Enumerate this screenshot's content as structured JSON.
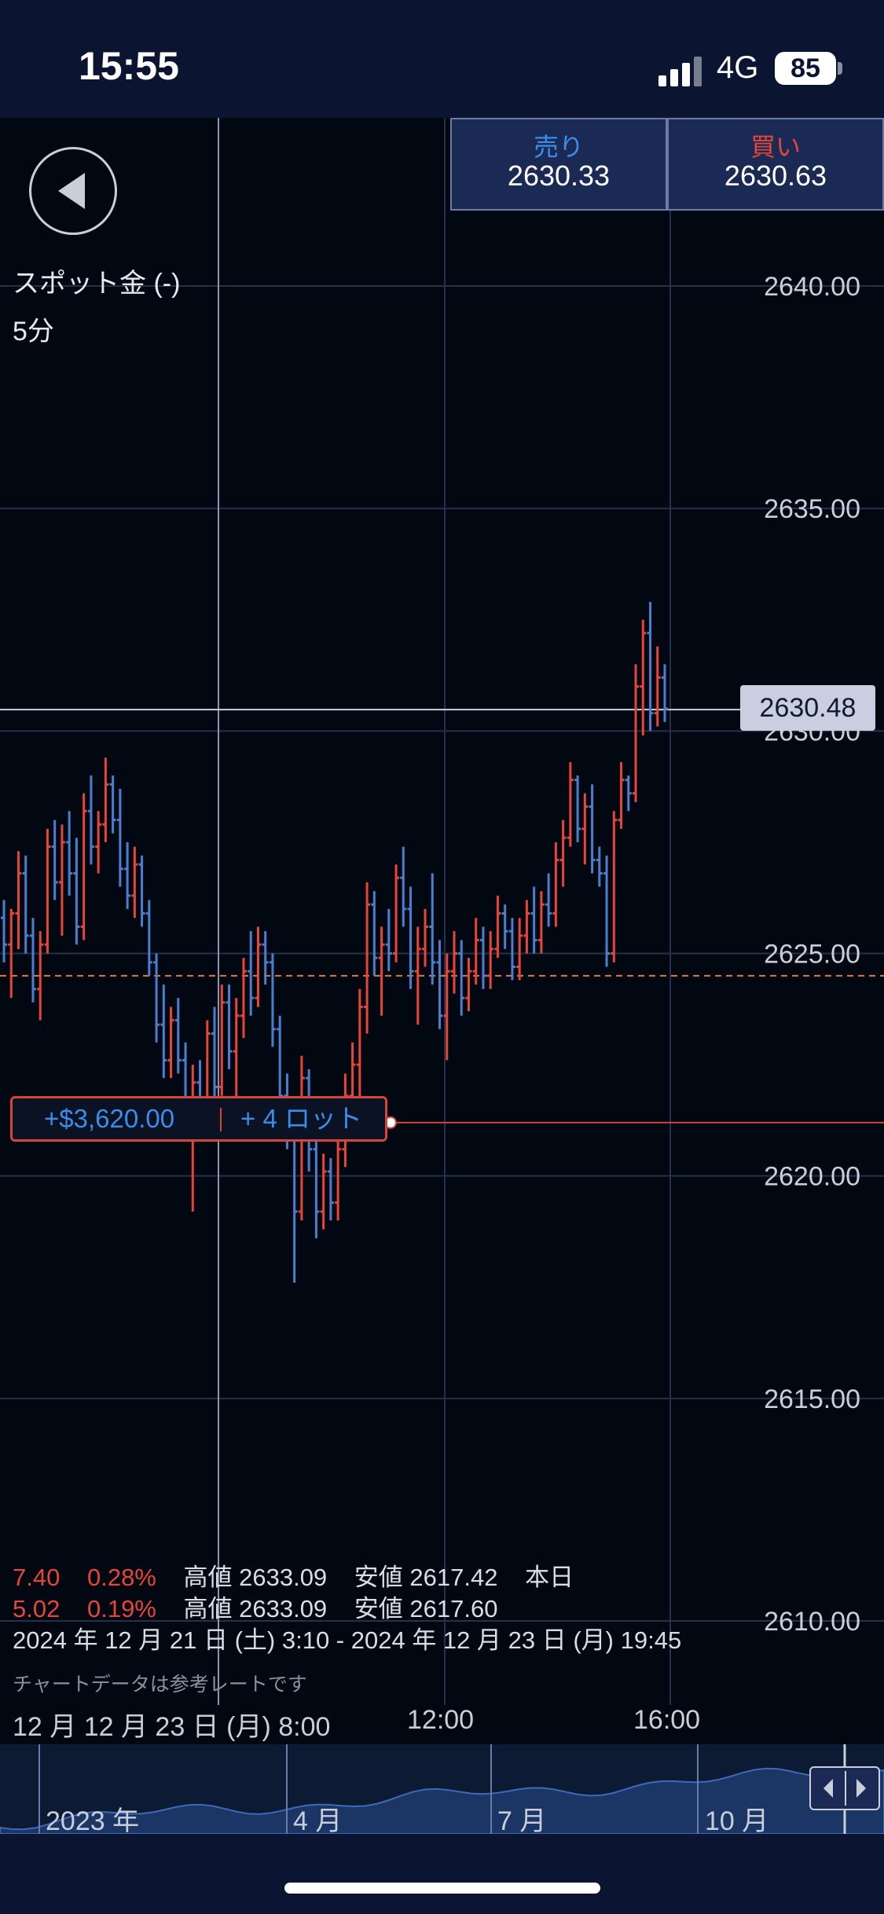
{
  "status_bar": {
    "time": "15:55",
    "network": "4G",
    "battery": "85"
  },
  "instrument": {
    "name": "スポット金 (-)",
    "timeframe": "5分"
  },
  "quotes": {
    "sell": {
      "label": "売り",
      "price": "2630.33"
    },
    "buy": {
      "label": "買い",
      "price": "2630.63"
    }
  },
  "current_price_tag": "2630.48",
  "position": {
    "pnl": "+$3,620.00",
    "lots": "+ 4 ロット",
    "entry_price": 2621.2,
    "breakeven_price": 2624.5
  },
  "stats": {
    "row1": {
      "change": "7.40",
      "pct": "0.28%",
      "high": "高値 2633.09",
      "low": "安値 2617.42",
      "period": "本日"
    },
    "row2": {
      "change": "5.02",
      "pct": "0.19%",
      "high": "高値 2633.09",
      "low": "安値 2617.60"
    },
    "range": "2024 年 12 月 21 日 (土) 3:10 - 2024 年 12 月 23 日 (月) 19:45",
    "note": "チャートデータは参考レートです"
  },
  "time_axis": {
    "cursor_label": "12 月 12 月 23 日 (月) 8:00",
    "t1": "12:00",
    "t2": "16:00"
  },
  "overview": {
    "labels": [
      "2023 年",
      "4 月",
      "7 月",
      "10 月"
    ]
  },
  "colors": {
    "up": "#e8453a",
    "down": "#4a7fd0",
    "background": "#020812",
    "quote_bg": "#1b2a55"
  },
  "icons": {
    "back": "back-arrow-icon",
    "scroll_left": "chevron-left-icon",
    "scroll_right": "chevron-right-icon"
  },
  "chart_data": {
    "type": "ohlc",
    "y_ticks": [
      "2640.00",
      "2635.00",
      "2630.00",
      "2625.00",
      "2620.00",
      "2615.00",
      "2610.00"
    ],
    "ylim": [
      2610,
      2640
    ],
    "grid": true,
    "bars": [
      {
        "o": 2625.8,
        "h": 2626.2,
        "l": 2624.8,
        "c": 2625.2
      },
      {
        "o": 2625.2,
        "h": 2626.0,
        "l": 2624.0,
        "c": 2625.9
      },
      {
        "o": 2625.9,
        "h": 2627.3,
        "l": 2625.1,
        "c": 2626.8
      },
      {
        "o": 2626.8,
        "h": 2627.2,
        "l": 2625.0,
        "c": 2625.4
      },
      {
        "o": 2625.4,
        "h": 2625.8,
        "l": 2623.9,
        "c": 2624.2
      },
      {
        "o": 2624.2,
        "h": 2625.5,
        "l": 2623.5,
        "c": 2625.2
      },
      {
        "o": 2625.2,
        "h": 2627.8,
        "l": 2625.0,
        "c": 2627.4
      },
      {
        "o": 2627.4,
        "h": 2628.0,
        "l": 2626.2,
        "c": 2626.6
      },
      {
        "o": 2626.6,
        "h": 2627.9,
        "l": 2625.4,
        "c": 2627.5
      },
      {
        "o": 2627.5,
        "h": 2628.2,
        "l": 2626.3,
        "c": 2626.8
      },
      {
        "o": 2626.8,
        "h": 2627.6,
        "l": 2625.2,
        "c": 2625.6
      },
      {
        "o": 2625.6,
        "h": 2628.6,
        "l": 2625.3,
        "c": 2628.2
      },
      {
        "o": 2628.2,
        "h": 2629.0,
        "l": 2627.0,
        "c": 2627.4
      },
      {
        "o": 2627.4,
        "h": 2628.2,
        "l": 2626.8,
        "c": 2627.9
      },
      {
        "o": 2627.9,
        "h": 2629.4,
        "l": 2627.5,
        "c": 2628.8
      },
      {
        "o": 2628.8,
        "h": 2629.0,
        "l": 2627.7,
        "c": 2628.0
      },
      {
        "o": 2628.0,
        "h": 2628.7,
        "l": 2626.5,
        "c": 2626.9
      },
      {
        "o": 2626.9,
        "h": 2627.5,
        "l": 2626.0,
        "c": 2626.3
      },
      {
        "o": 2626.3,
        "h": 2627.4,
        "l": 2625.8,
        "c": 2627.0
      },
      {
        "o": 2627.0,
        "h": 2627.2,
        "l": 2625.6,
        "c": 2625.9
      },
      {
        "o": 2625.9,
        "h": 2626.2,
        "l": 2624.5,
        "c": 2624.8
      },
      {
        "o": 2624.8,
        "h": 2625.0,
        "l": 2623.0,
        "c": 2623.4
      },
      {
        "o": 2623.4,
        "h": 2624.3,
        "l": 2622.2,
        "c": 2622.6
      },
      {
        "o": 2622.6,
        "h": 2623.8,
        "l": 2622.2,
        "c": 2623.5
      },
      {
        "o": 2623.5,
        "h": 2624.0,
        "l": 2622.3,
        "c": 2622.6
      },
      {
        "o": 2622.6,
        "h": 2623.0,
        "l": 2620.8,
        "c": 2621.5
      },
      {
        "o": 2621.5,
        "h": 2622.5,
        "l": 2619.2,
        "c": 2622.1
      },
      {
        "o": 2622.1,
        "h": 2622.6,
        "l": 2621.0,
        "c": 2621.4
      },
      {
        "o": 2621.4,
        "h": 2623.5,
        "l": 2621.2,
        "c": 2623.2
      },
      {
        "o": 2623.2,
        "h": 2623.8,
        "l": 2621.6,
        "c": 2622.0
      },
      {
        "o": 2622.0,
        "h": 2624.3,
        "l": 2621.8,
        "c": 2623.9
      },
      {
        "o": 2623.9,
        "h": 2624.3,
        "l": 2622.4,
        "c": 2622.8
      },
      {
        "o": 2622.8,
        "h": 2624.0,
        "l": 2621.7,
        "c": 2623.6
      },
      {
        "o": 2623.6,
        "h": 2624.9,
        "l": 2623.1,
        "c": 2624.6
      },
      {
        "o": 2624.6,
        "h": 2625.5,
        "l": 2623.6,
        "c": 2624.0
      },
      {
        "o": 2624.0,
        "h": 2625.6,
        "l": 2623.8,
        "c": 2625.2
      },
      {
        "o": 2625.2,
        "h": 2625.5,
        "l": 2624.3,
        "c": 2624.8
      },
      {
        "o": 2624.8,
        "h": 2625.0,
        "l": 2622.9,
        "c": 2623.3
      },
      {
        "o": 2623.3,
        "h": 2623.6,
        "l": 2621.5,
        "c": 2621.8
      },
      {
        "o": 2621.8,
        "h": 2622.3,
        "l": 2620.6,
        "c": 2621.0
      },
      {
        "o": 2621.0,
        "h": 2621.2,
        "l": 2617.6,
        "c": 2619.2
      },
      {
        "o": 2619.2,
        "h": 2622.7,
        "l": 2619.0,
        "c": 2622.2
      },
      {
        "o": 2622.2,
        "h": 2622.4,
        "l": 2620.1,
        "c": 2620.6
      },
      {
        "o": 2620.6,
        "h": 2621.4,
        "l": 2618.6,
        "c": 2619.2
      },
      {
        "o": 2619.2,
        "h": 2620.5,
        "l": 2618.8,
        "c": 2620.1
      },
      {
        "o": 2620.1,
        "h": 2620.4,
        "l": 2619.0,
        "c": 2619.4
      },
      {
        "o": 2619.4,
        "h": 2621.0,
        "l": 2619.0,
        "c": 2620.6
      },
      {
        "o": 2620.6,
        "h": 2622.3,
        "l": 2620.2,
        "c": 2621.8
      },
      {
        "o": 2621.8,
        "h": 2623.0,
        "l": 2621.0,
        "c": 2622.5
      },
      {
        "o": 2622.5,
        "h": 2624.2,
        "l": 2621.6,
        "c": 2623.8
      },
      {
        "o": 2623.8,
        "h": 2626.6,
        "l": 2623.2,
        "c": 2626.1
      },
      {
        "o": 2626.1,
        "h": 2626.4,
        "l": 2624.5,
        "c": 2624.9
      },
      {
        "o": 2624.9,
        "h": 2625.6,
        "l": 2623.6,
        "c": 2625.2
      },
      {
        "o": 2625.2,
        "h": 2626.0,
        "l": 2624.6,
        "c": 2625.0
      },
      {
        "o": 2625.0,
        "h": 2627.0,
        "l": 2624.8,
        "c": 2626.7
      },
      {
        "o": 2626.7,
        "h": 2627.4,
        "l": 2625.6,
        "c": 2626.0
      },
      {
        "o": 2626.0,
        "h": 2626.5,
        "l": 2624.2,
        "c": 2624.6
      },
      {
        "o": 2624.6,
        "h": 2625.6,
        "l": 2623.4,
        "c": 2625.1
      },
      {
        "o": 2625.1,
        "h": 2626.0,
        "l": 2624.7,
        "c": 2625.6
      },
      {
        "o": 2625.6,
        "h": 2626.8,
        "l": 2624.3,
        "c": 2624.8
      },
      {
        "o": 2624.8,
        "h": 2625.3,
        "l": 2623.3,
        "c": 2623.6
      },
      {
        "o": 2623.6,
        "h": 2625.0,
        "l": 2622.6,
        "c": 2624.6
      },
      {
        "o": 2624.6,
        "h": 2625.5,
        "l": 2624.1,
        "c": 2625.0
      },
      {
        "o": 2625.0,
        "h": 2625.3,
        "l": 2623.6,
        "c": 2624.0
      },
      {
        "o": 2624.0,
        "h": 2624.9,
        "l": 2623.7,
        "c": 2624.6
      },
      {
        "o": 2624.6,
        "h": 2625.8,
        "l": 2624.3,
        "c": 2625.3
      },
      {
        "o": 2625.3,
        "h": 2625.6,
        "l": 2624.2,
        "c": 2624.5
      },
      {
        "o": 2624.5,
        "h": 2625.5,
        "l": 2624.2,
        "c": 2625.1
      },
      {
        "o": 2625.1,
        "h": 2626.3,
        "l": 2624.9,
        "c": 2625.9
      },
      {
        "o": 2625.9,
        "h": 2626.1,
        "l": 2625.1,
        "c": 2625.5
      },
      {
        "o": 2625.5,
        "h": 2625.8,
        "l": 2624.4,
        "c": 2624.7
      },
      {
        "o": 2624.7,
        "h": 2625.8,
        "l": 2624.4,
        "c": 2625.4
      },
      {
        "o": 2625.4,
        "h": 2626.2,
        "l": 2625.0,
        "c": 2625.9
      },
      {
        "o": 2625.9,
        "h": 2626.5,
        "l": 2625.0,
        "c": 2625.3
      },
      {
        "o": 2625.3,
        "h": 2626.4,
        "l": 2625.0,
        "c": 2626.1
      },
      {
        "o": 2626.1,
        "h": 2626.8,
        "l": 2625.6,
        "c": 2625.9
      },
      {
        "o": 2625.9,
        "h": 2627.5,
        "l": 2625.6,
        "c": 2627.1
      },
      {
        "o": 2627.1,
        "h": 2628.0,
        "l": 2626.5,
        "c": 2627.6
      },
      {
        "o": 2627.6,
        "h": 2629.3,
        "l": 2627.4,
        "c": 2628.9
      },
      {
        "o": 2628.9,
        "h": 2629.0,
        "l": 2627.5,
        "c": 2627.8
      },
      {
        "o": 2627.8,
        "h": 2628.6,
        "l": 2627.0,
        "c": 2628.3
      },
      {
        "o": 2628.3,
        "h": 2628.8,
        "l": 2626.8,
        "c": 2627.1
      },
      {
        "o": 2627.1,
        "h": 2627.4,
        "l": 2626.5,
        "c": 2626.8
      },
      {
        "o": 2626.8,
        "h": 2627.2,
        "l": 2624.7,
        "c": 2625.0
      },
      {
        "o": 2625.0,
        "h": 2628.2,
        "l": 2624.8,
        "c": 2628.0
      },
      {
        "o": 2628.0,
        "h": 2629.3,
        "l": 2627.8,
        "c": 2628.9
      },
      {
        "o": 2628.9,
        "h": 2629.0,
        "l": 2628.2,
        "c": 2628.6
      },
      {
        "o": 2628.6,
        "h": 2631.5,
        "l": 2628.4,
        "c": 2631.0
      },
      {
        "o": 2631.0,
        "h": 2632.5,
        "l": 2629.9,
        "c": 2632.2
      },
      {
        "o": 2632.2,
        "h": 2632.9,
        "l": 2630.0,
        "c": 2630.4
      },
      {
        "o": 2630.4,
        "h": 2631.9,
        "l": 2630.1,
        "c": 2631.2
      },
      {
        "o": 2631.2,
        "h": 2631.5,
        "l": 2630.2,
        "c": 2630.5
      }
    ]
  }
}
